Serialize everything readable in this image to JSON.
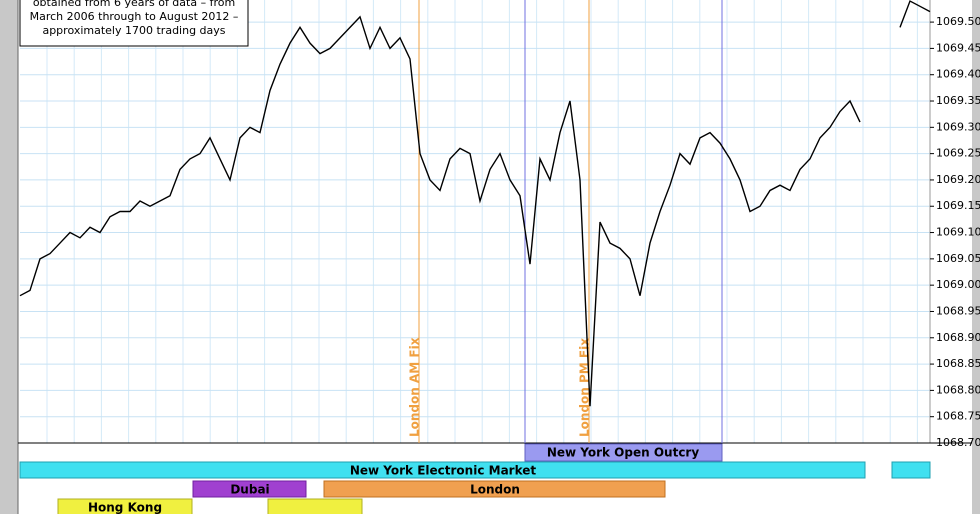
{
  "chart_data": {
    "type": "line",
    "note": [
      "obtained from 6 years of data – from",
      "March 2006 through to August 2012 –",
      "approximately 1700 trading days"
    ],
    "annotations": [
      "London AM Fix",
      "London PM Fix"
    ],
    "sessions": [
      "New York Open Outcry",
      "New York Electronic Market",
      "Dubai",
      "London",
      "Hong Kong"
    ],
    "color": "#000000",
    "grid": true,
    "ylim": [
      1068.7,
      1069.542
    ],
    "yticks": [
      {
        "value": 1068.7,
        "label": "1068.70"
      },
      1068.75,
      {
        "value": 1068.8,
        "label": "1068.80"
      },
      1068.85,
      {
        "value": 1068.9,
        "label": "1068.90"
      },
      1068.95,
      {
        "value": 1069.0,
        "label": "1069.00"
      },
      1069.05,
      {
        "value": 1069.1,
        "label": "1069.10"
      },
      1069.15,
      {
        "value": 1069.2,
        "label": "1069.20"
      },
      1069.25,
      {
        "value": 1069.3,
        "label": "1069.30"
      },
      1069.35,
      {
        "value": 1069.4,
        "label": "1069.40"
      },
      1069.45,
      {
        "value": 1069.5,
        "label": "1069.50"
      }
    ],
    "values": [
      1068.98,
      1068.99,
      1069.05,
      1069.06,
      1069.08,
      1069.1,
      1069.09,
      1069.11,
      1069.1,
      1069.13,
      1069.14,
      1069.14,
      1069.16,
      1069.15,
      1069.16,
      1069.17,
      1069.22,
      1069.24,
      1069.25,
      1069.28,
      1069.24,
      1069.2,
      1069.28,
      1069.3,
      1069.29,
      1069.37,
      1069.42,
      1069.46,
      1069.49,
      1069.46,
      1069.44,
      1069.45,
      1069.47,
      1069.49,
      1069.51,
      1069.45,
      1069.49,
      1069.45,
      1069.47,
      1069.43,
      1069.25,
      1069.2,
      1069.18,
      1069.24,
      1069.26,
      1069.25,
      1069.16,
      1069.22,
      1069.25,
      1069.2,
      1069.17,
      1069.04,
      1069.24,
      1069.2,
      1069.29,
      1069.35,
      1069.2,
      1068.77,
      1069.12,
      1069.08,
      1069.07,
      1069.05,
      1068.98,
      1069.08,
      1069.14,
      1069.19,
      1069.25,
      1069.23,
      1069.28,
      1069.29,
      1069.27,
      1069.24,
      1069.2,
      1069.14,
      1069.15,
      1069.18,
      1069.19,
      1069.18,
      1069.22,
      1069.24,
      1069.28,
      1069.3,
      1069.33,
      1069.35,
      1069.31,
      null,
      null,
      null,
      1069.49,
      1069.54,
      1069.53,
      1069.52
    ]
  }
}
